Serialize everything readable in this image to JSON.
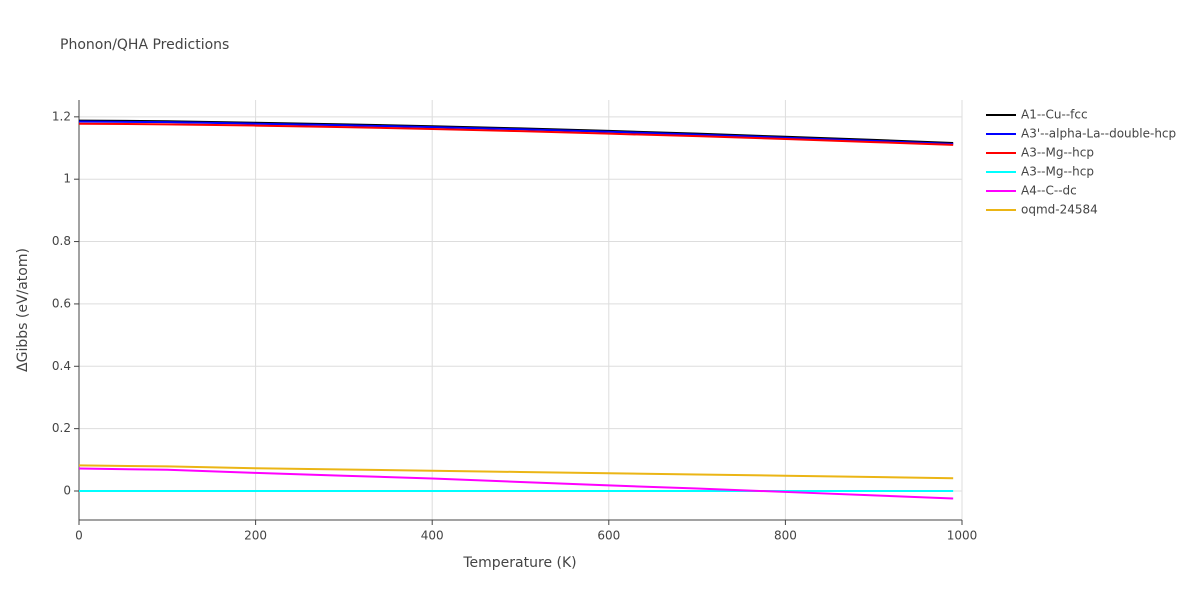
{
  "chart_data": {
    "type": "line",
    "title": "Phonon/QHA Predictions",
    "xlabel": "Temperature (K)",
    "ylabel": "ΔGibbs (eV/atom)",
    "x": [
      0,
      100,
      200,
      300,
      400,
      500,
      600,
      700,
      800,
      900,
      990
    ],
    "series": [
      {
        "name": "A1--Cu--fcc",
        "color": "#000000",
        "values": [
          1.188,
          1.186,
          1.181,
          1.176,
          1.17,
          1.163,
          1.155,
          1.146,
          1.136,
          1.126,
          1.116
        ]
      },
      {
        "name": "A3'--alpha-La--double-hcp",
        "color": "#0000ff",
        "values": [
          1.185,
          1.183,
          1.178,
          1.173,
          1.167,
          1.16,
          1.152,
          1.143,
          1.133,
          1.123,
          1.113
        ]
      },
      {
        "name": "A3--Mg--hcp",
        "color": "#ff0000",
        "values": [
          1.178,
          1.176,
          1.172,
          1.167,
          1.161,
          1.154,
          1.146,
          1.138,
          1.129,
          1.119,
          1.11
        ]
      },
      {
        "name": "A3--Mg--hcp",
        "color": "#00ffff",
        "values": [
          0,
          0,
          0,
          0,
          0,
          0,
          0,
          0,
          0,
          0,
          0
        ]
      },
      {
        "name": "A4--C--dc",
        "color": "#ff00ff",
        "values": [
          0.072,
          0.068,
          0.058,
          0.049,
          0.04,
          0.029,
          0.018,
          0.008,
          -0.003,
          -0.014,
          -0.024
        ]
      },
      {
        "name": "oqmd-24584",
        "color": "#ebb515",
        "values": [
          0.082,
          0.079,
          0.073,
          0.069,
          0.065,
          0.061,
          0.057,
          0.053,
          0.049,
          0.045,
          0.041
        ]
      }
    ],
    "xlim": [
      0,
      1000
    ],
    "ylim": [
      -0.093,
      1.254
    ],
    "xticks": [
      0,
      200,
      400,
      600,
      800,
      1000
    ],
    "yticks": [
      0,
      0.2,
      0.4,
      0.6,
      0.8,
      1,
      1.2
    ],
    "grid": true,
    "legend": "right"
  }
}
